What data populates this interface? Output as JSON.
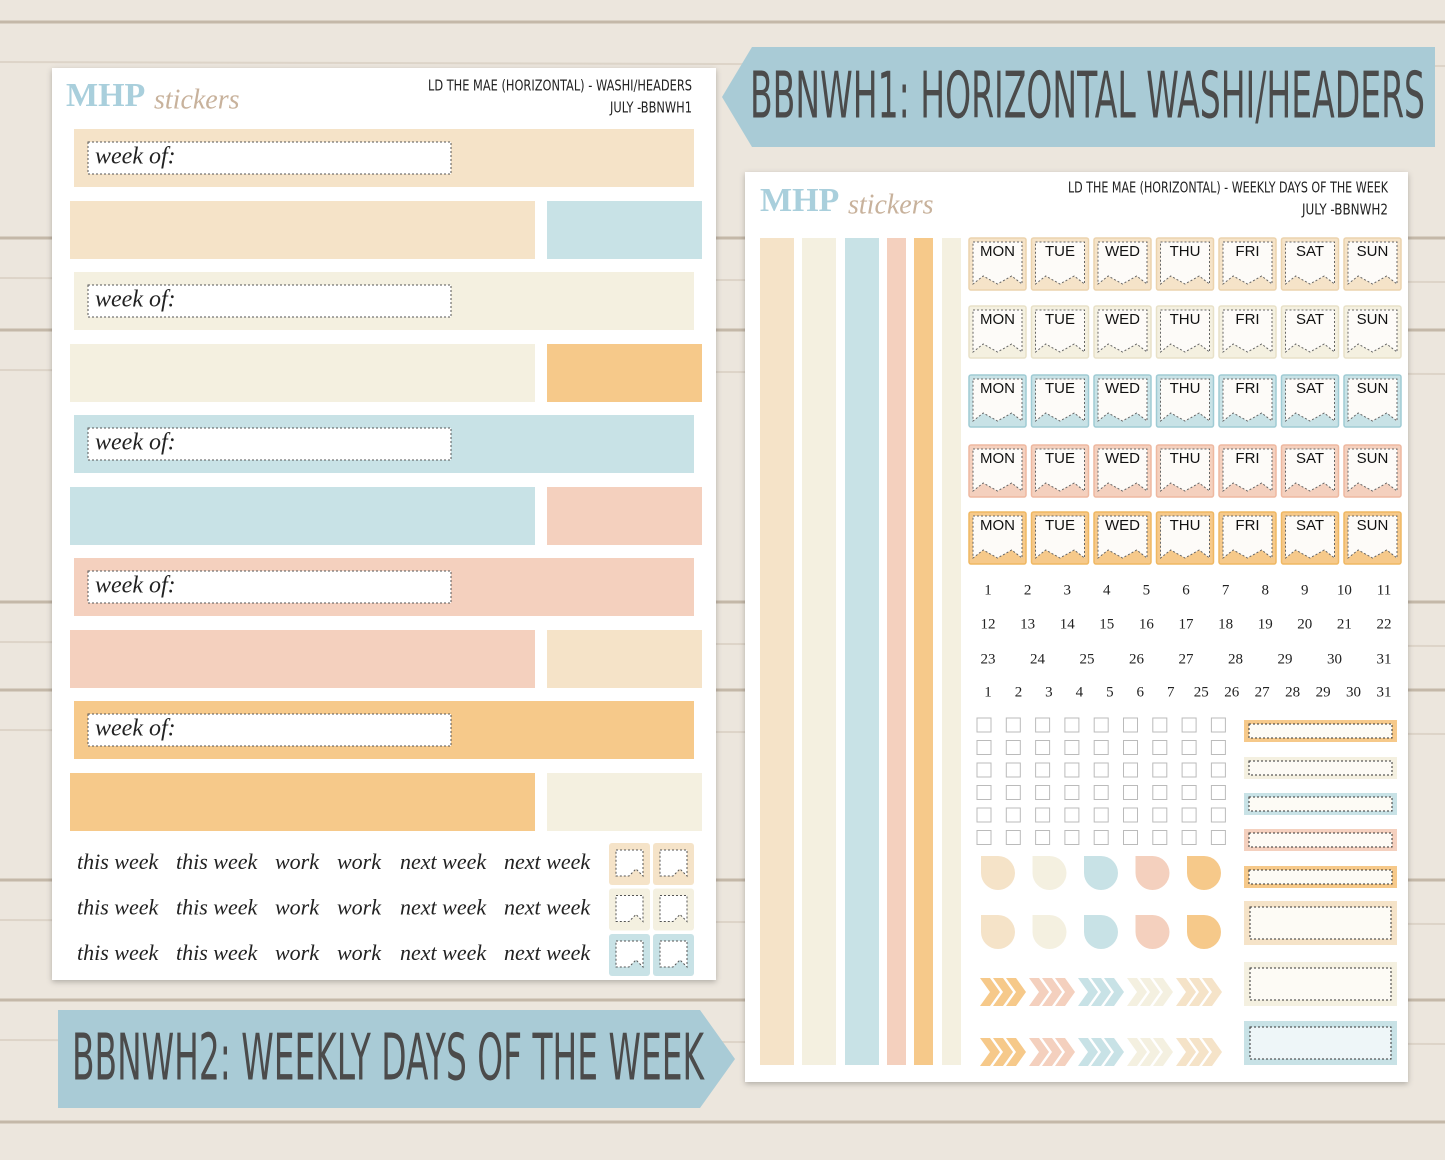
{
  "banners": {
    "top": "BBNWH1: HORIZONTAL WASHI/HEADERS",
    "bottom": "BBNWH2: WEEKLY DAYS OF THE WEEK"
  },
  "sheet1": {
    "logo": {
      "mark": "MHP",
      "word": "stickers"
    },
    "title": "LD THE MAE (HORIZONTAL) - WASHI/HEADERS",
    "code": "JULY -BBNWH1",
    "headers": [
      "week of:",
      "week of:",
      "week of:",
      "week of:",
      "week of:"
    ],
    "words": [
      [
        "this week",
        "this week",
        "work",
        "work",
        "next week",
        "next week"
      ],
      [
        "this week",
        "this week",
        "work",
        "work",
        "next week",
        "next week"
      ],
      [
        "this week",
        "this week",
        "work",
        "work",
        "next week",
        "next week"
      ]
    ]
  },
  "sheet2": {
    "logo": {
      "mark": "MHP",
      "word": "stickers"
    },
    "title": "LD THE MAE (HORIZONTAL) - WEEKLY DAYS OF THE WEEK",
    "code": "JULY -BBNWH2",
    "days": [
      [
        "MON",
        "TUE",
        "WED",
        "THU",
        "FRI",
        "SAT",
        "SUN"
      ],
      [
        "MON",
        "TUE",
        "WED",
        "THU",
        "FRI",
        "SAT",
        "SUN"
      ],
      [
        "MON",
        "TUE",
        "WED",
        "THU",
        "FRI",
        "SAT",
        "SUN"
      ],
      [
        "MON",
        "TUE",
        "WED",
        "THU",
        "FRI",
        "SAT",
        "SUN"
      ],
      [
        "MON",
        "TUE",
        "WED",
        "THU",
        "FRI",
        "SAT",
        "SUN"
      ]
    ],
    "numbers": [
      [
        1,
        2,
        3,
        4,
        5,
        6,
        7,
        8,
        9,
        10,
        11
      ],
      [
        12,
        13,
        14,
        15,
        16,
        17,
        18,
        19,
        20,
        21,
        22
      ],
      [
        23,
        24,
        25,
        26,
        27,
        28,
        29,
        30,
        31
      ],
      [
        1,
        2,
        3,
        4,
        5,
        6,
        7,
        25,
        26,
        27,
        28,
        29,
        30,
        31
      ]
    ]
  }
}
